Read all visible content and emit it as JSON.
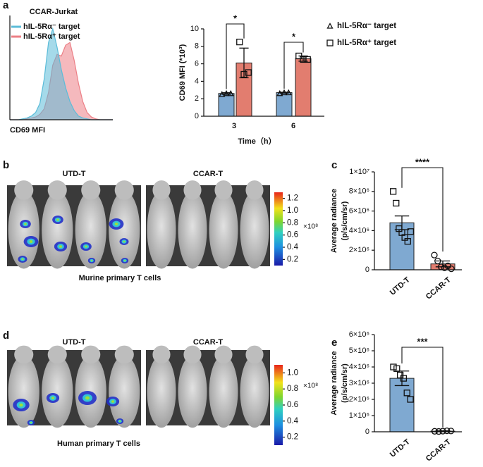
{
  "panel_labels": [
    "a",
    "b",
    "c",
    "d",
    "e"
  ],
  "imaging": [
    {
      "groups": [
        "UTD-T",
        "CCAR-T"
      ],
      "caption": "Murine primary T cells",
      "colorbar": {
        "lim": [
          0.1,
          1.3
        ],
        "ticks": [
          0.2,
          0.4,
          0.6,
          0.8,
          {
            "value": 1,
            "label": "1.0"
          },
          1.2
        ],
        "unit": "×10⁸"
      }
    },
    {
      "groups": [
        "UTD-T",
        "CCAR-T"
      ],
      "caption": "Human primary T cells",
      "colorbar": {
        "lim": [
          0.1,
          1.1
        ],
        "ticks": [
          0.2,
          0.4,
          0.6,
          0.8,
          {
            "value": 1,
            "label": "1.0"
          }
        ],
        "unit": "×10⁸"
      }
    }
  ],
  "chart_data": [
    {
      "type": "area",
      "title": "CCAR-Jurkat",
      "xlabel": "CD69 MFI",
      "x": [
        0,
        1,
        2,
        3,
        4,
        5,
        6,
        7,
        8,
        9,
        10,
        11,
        12,
        13,
        14,
        15,
        16,
        17,
        18,
        19,
        20,
        21,
        22,
        23,
        24
      ],
      "xlim": [
        0,
        24
      ],
      "ylim": [
        0,
        110
      ],
      "series": [
        {
          "name": "hIL-5Rα⁻ target",
          "color": "#5bbcd8",
          "values": [
            0,
            0,
            0,
            1,
            2,
            4,
            8,
            18,
            45,
            85,
            100,
            80,
            55,
            35,
            20,
            10,
            4,
            2,
            1,
            0,
            0,
            0,
            0,
            0,
            0
          ]
        },
        {
          "name": "hIL-5Rα⁺ target",
          "color": "#ec7f86",
          "values": [
            0,
            0,
            0,
            0,
            1,
            2,
            3,
            6,
            12,
            30,
            60,
            72,
            70,
            82,
            85,
            65,
            40,
            20,
            8,
            3,
            1,
            0,
            0,
            0,
            0
          ]
        }
      ]
    },
    {
      "type": "bar",
      "ylabel": "CD69 MFI (*10³)",
      "xlabel": "Time（h）",
      "categories": [
        "3",
        "6"
      ],
      "ylim": [
        0,
        10
      ],
      "yticks": [
        0,
        2,
        4,
        6,
        8,
        10
      ],
      "legend": "right",
      "series": [
        {
          "name": "hIL-5Rα⁻ target",
          "color": "#7fa9d1",
          "marker": "triangle",
          "values": [
            2.6,
            2.7
          ],
          "errors": [
            0.1,
            0.05
          ],
          "points": [
            [
              2.5,
              2.6,
              2.6
            ],
            [
              2.6,
              2.7,
              2.7
            ]
          ]
        },
        {
          "name": "hIL-5Rα⁺ target",
          "color": "#e27d6f",
          "marker": "square",
          "values": [
            6.1,
            6.6
          ],
          "errors": [
            1.7,
            0.3
          ],
          "points": [
            [
              8.5,
              4.8,
              5.0
            ],
            [
              6.9,
              6.5,
              6.5
            ]
          ]
        }
      ],
      "annotations": [
        {
          "text": "*",
          "category": 0
        },
        {
          "text": "*",
          "category": 1
        }
      ]
    },
    {
      "type": "bar",
      "ylabel": [
        "Average radiance",
        "(p/s/cm/sr)"
      ],
      "categories": [
        "UTD-T",
        "CCAR-T"
      ],
      "ylim": [
        0,
        10000000
      ],
      "yticks": [
        0,
        {
          "value": 2000000,
          "label": "2×10⁶"
        },
        {
          "value": 4000000,
          "label": "4×10⁶"
        },
        {
          "value": 6000000,
          "label": "6×10⁶"
        },
        {
          "value": 8000000,
          "label": "8×10⁶"
        },
        {
          "value": 10000000,
          "label": "1×10⁷"
        }
      ],
      "values": [
        4800000,
        600000
      ],
      "errors": [
        700000,
        300000
      ],
      "colors": [
        "#7fa9d1",
        "#e27d6f"
      ],
      "markers": [
        "square",
        "circle"
      ],
      "points": [
        [
          8000000,
          6800000,
          4200000,
          3800000,
          3300000,
          2900000,
          3900000
        ],
        [
          1500000,
          900000,
          300000,
          200000,
          400000,
          100000
        ]
      ],
      "annotations": [
        {
          "text": "****"
        }
      ]
    },
    {
      "type": "bar",
      "ylabel": [
        "Average radiance",
        "(p/s/cm/sr)"
      ],
      "categories": [
        "UTD-T",
        "CCAR-T"
      ],
      "ylim": [
        0,
        6000000
      ],
      "yticks": [
        0,
        {
          "value": 1000000,
          "label": "1×10⁶"
        },
        {
          "value": 2000000,
          "label": "2×10⁶"
        },
        {
          "value": 3000000,
          "label": "3×10⁶"
        },
        {
          "value": 4000000,
          "label": "4×10⁶"
        },
        {
          "value": 5000000,
          "label": "5×10⁶"
        },
        {
          "value": 6000000,
          "label": "6×10⁶"
        }
      ],
      "values": [
        3300000,
        40000
      ],
      "errors": [
        450000,
        20000
      ],
      "colors": [
        "#7fa9d1",
        "#e27d6f"
      ],
      "markers": [
        "square",
        "circle"
      ],
      "points": [
        [
          4000000,
          3900000,
          3500000,
          3300000,
          2400000,
          2000000
        ],
        [
          30000,
          20000,
          40000,
          60000,
          50000
        ]
      ],
      "annotations": [
        {
          "text": "***"
        }
      ]
    }
  ]
}
